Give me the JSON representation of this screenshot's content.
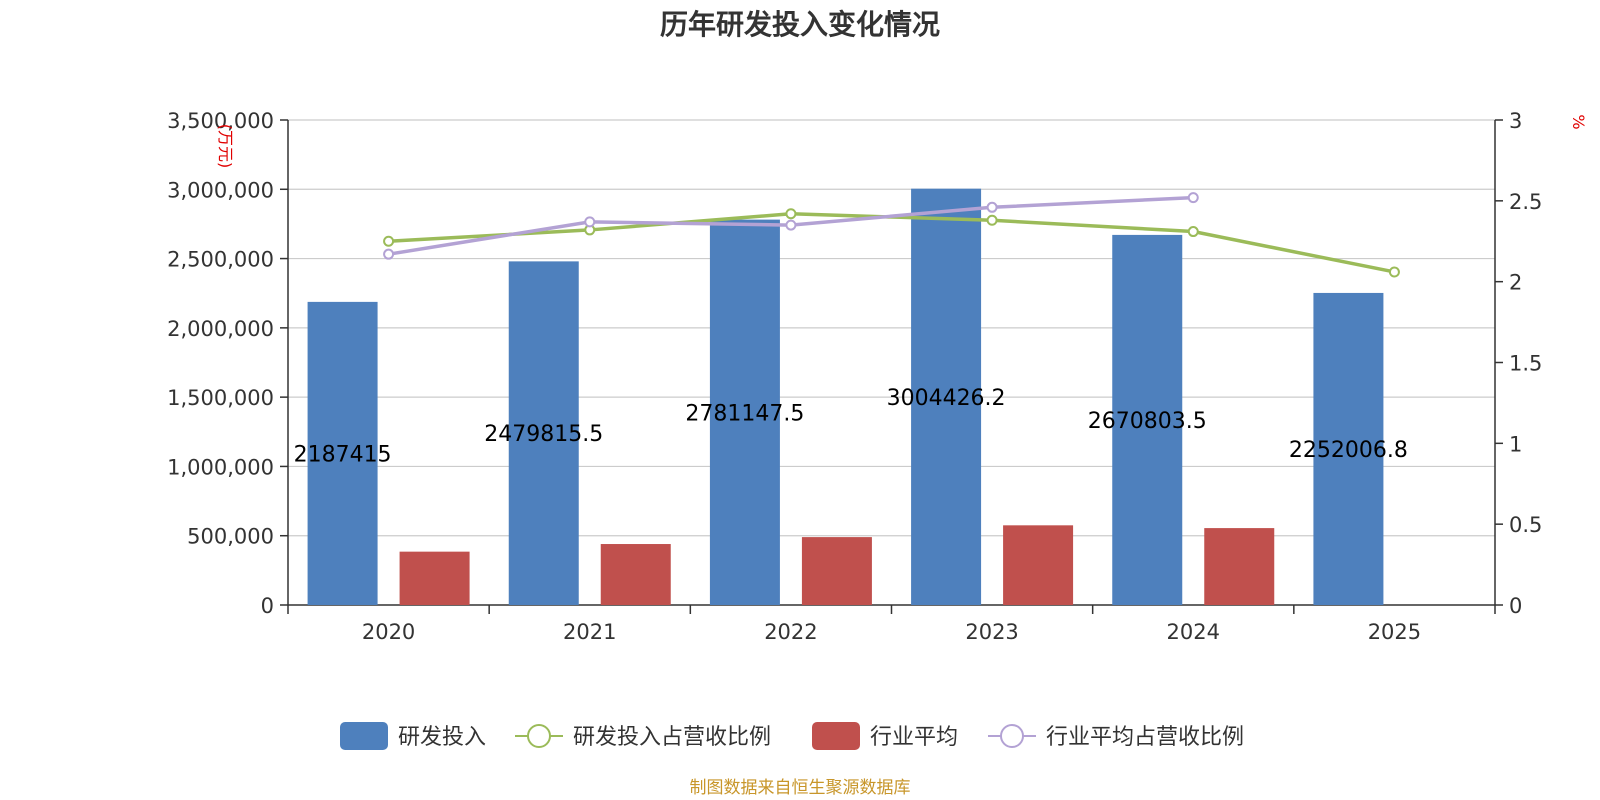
{
  "chart_data": {
    "type": "bar",
    "title": "历年研发投入变化情况",
    "categories": [
      "2020",
      "2021",
      "2022",
      "2023",
      "2024",
      "2025"
    ],
    "y_left": {
      "unit": "(万元)",
      "ylim": [
        0,
        3500000
      ],
      "ticks": [
        0,
        500000,
        1000000,
        1500000,
        2000000,
        2500000,
        3000000,
        3500000
      ],
      "tick_labels": [
        "0",
        "500,000",
        "1,000,000",
        "1,500,000",
        "2,000,000",
        "2,500,000",
        "3,000,000",
        "3,500,000"
      ]
    },
    "y_right": {
      "unit": "%",
      "ylim": [
        0,
        3
      ],
      "ticks": [
        0,
        0.5,
        1,
        1.5,
        2,
        2.5,
        3
      ],
      "tick_labels": [
        "0",
        "0.5",
        "1",
        "1.5",
        "2",
        "2.5",
        "3"
      ]
    },
    "series": [
      {
        "name": "研发投入",
        "type": "bar",
        "axis": "left",
        "color": "#4e80bd",
        "values": [
          2187415,
          2479815.5,
          2781147.5,
          3004426.2,
          2670803.5,
          2252006.8
        ],
        "labels": [
          "2187415",
          "2479815.5",
          "2781147.5",
          "3004426.2",
          "2670803.5",
          "2252006.8"
        ]
      },
      {
        "name": "研发投入占营收比例",
        "type": "line",
        "axis": "right",
        "color": "#9bbb59",
        "values": [
          2.25,
          2.32,
          2.42,
          2.38,
          2.31,
          2.06
        ]
      },
      {
        "name": "行业平均",
        "type": "bar",
        "axis": "left",
        "color": "#c0504d",
        "values": [
          385000,
          440000,
          490000,
          575000,
          555000,
          null
        ]
      },
      {
        "name": "行业平均占营收比例",
        "type": "line",
        "axis": "right",
        "color": "#b3a2d4",
        "values": [
          2.17,
          2.37,
          2.35,
          2.46,
          2.52,
          null
        ]
      }
    ],
    "grid": true,
    "legend_position": "bottom"
  },
  "source_note": "制图数据来自恒生聚源数据库"
}
